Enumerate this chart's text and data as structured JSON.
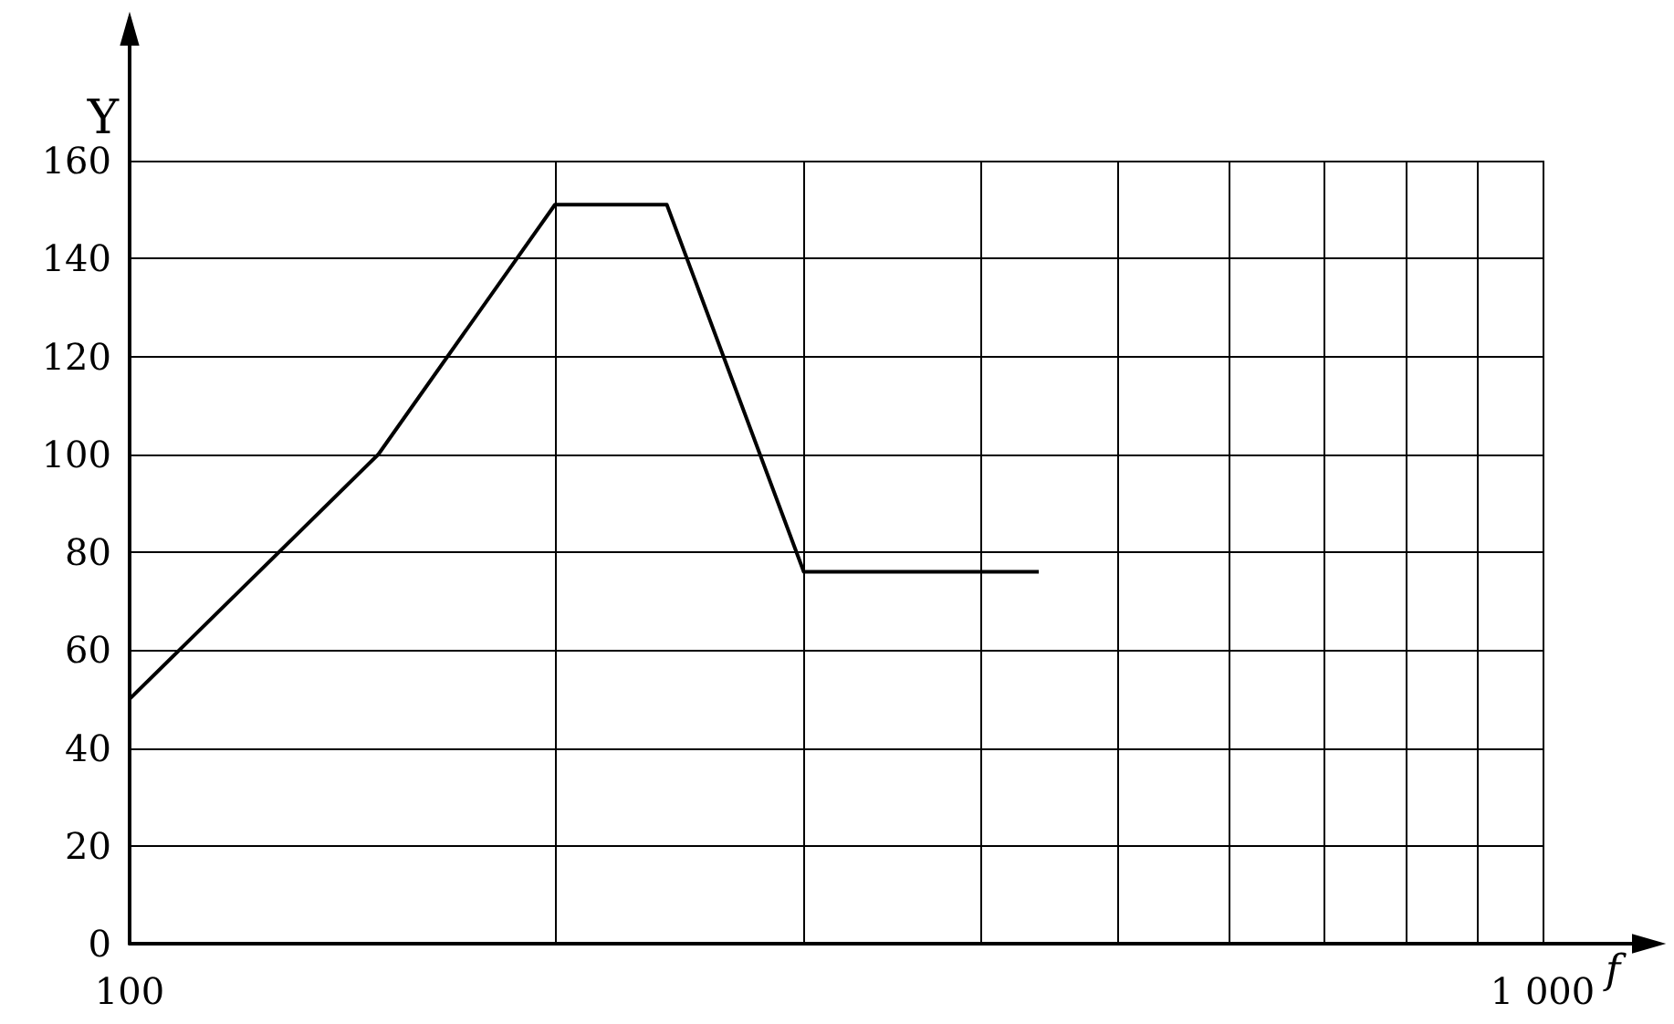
{
  "chart_data": {
    "type": "line",
    "xlabel": "f",
    "ylabel": "Y",
    "log": "x",
    "grid": true,
    "marker": "none",
    "line_style": "solid",
    "x": [
      100,
      150,
      200,
      240,
      300,
      440
    ],
    "series": [
      {
        "color": "#000000",
        "values": [
          50,
          100,
          151,
          151,
          76,
          76
        ]
      }
    ],
    "xlim": [
      100,
      1000
    ],
    "xticks": [
      {
        "value": 100,
        "label": "100"
      },
      {
        "value": 200,
        "label": null
      },
      {
        "value": 300,
        "label": null
      },
      {
        "value": 400,
        "label": null
      },
      {
        "value": 500,
        "label": null
      },
      {
        "value": 600,
        "label": null
      },
      {
        "value": 700,
        "label": null
      },
      {
        "value": 800,
        "label": null
      },
      {
        "value": 900,
        "label": null
      },
      {
        "value": 1000,
        "label": "1 000"
      }
    ],
    "ylim": [
      0,
      160
    ],
    "yticks": [
      0,
      20,
      40,
      60,
      80,
      100,
      120,
      140,
      160
    ]
  }
}
